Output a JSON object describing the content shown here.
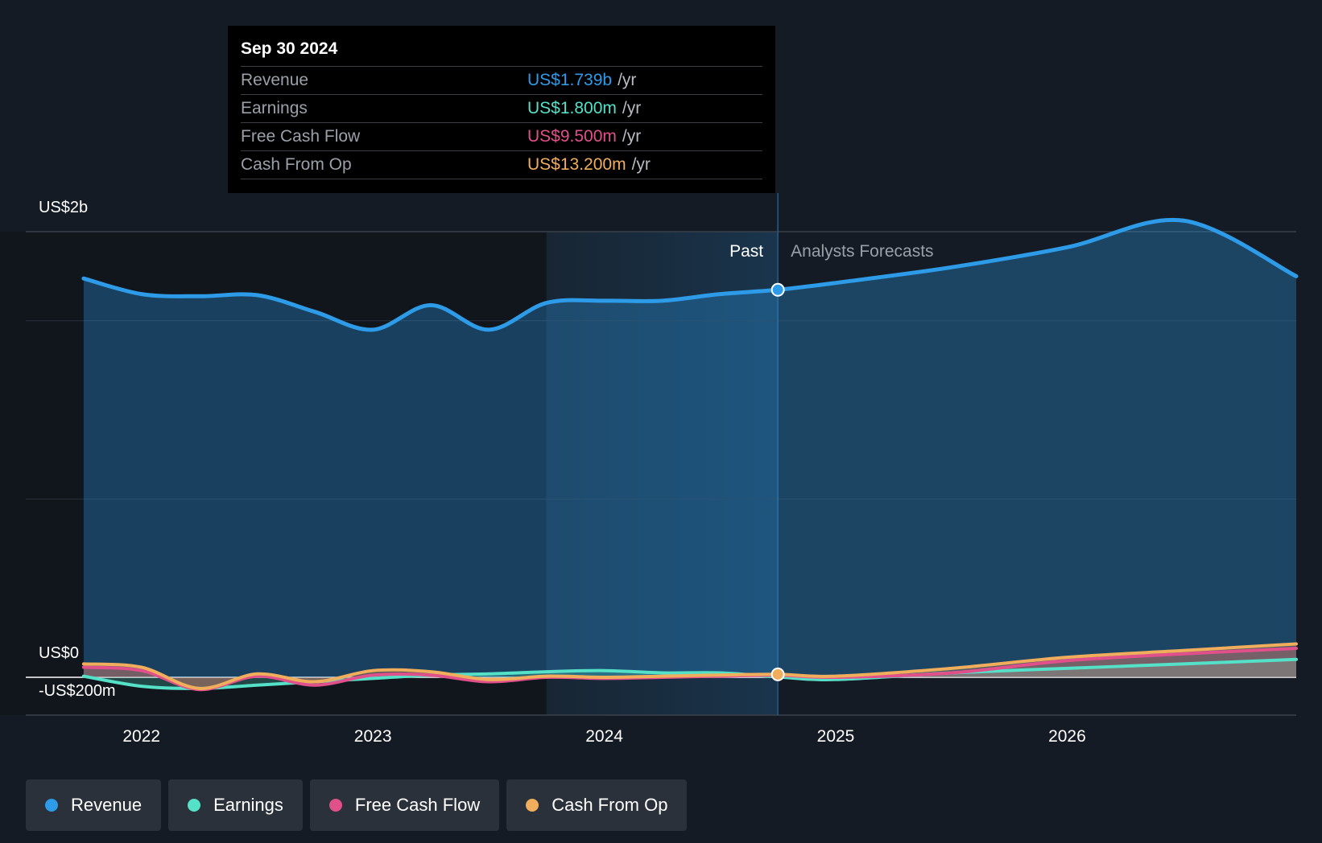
{
  "tooltip": {
    "date": "Sep 30 2024",
    "rows": [
      {
        "label": "Revenue",
        "value": "US$1.739b",
        "unit": "/yr",
        "color": "#2d9be8"
      },
      {
        "label": "Earnings",
        "value": "US$1.800m",
        "unit": "/yr",
        "color": "#55e0c8"
      },
      {
        "label": "Free Cash Flow",
        "value": "US$9.500m",
        "unit": "/yr",
        "color": "#e0508a"
      },
      {
        "label": "Cash From Op",
        "value": "US$13.200m",
        "unit": "/yr",
        "color": "#f0ad5c"
      }
    ]
  },
  "labels": {
    "past": "Past",
    "forecast": "Analysts Forecasts"
  },
  "legend": [
    {
      "label": "Revenue",
      "color": "#2d9be8"
    },
    {
      "label": "Earnings",
      "color": "#55e0c8"
    },
    {
      "label": "Free Cash Flow",
      "color": "#e0508a"
    },
    {
      "label": "Cash From Op",
      "color": "#f0ad5c"
    }
  ],
  "chart_data": {
    "type": "line",
    "y_tick_labels": [
      "US$2b",
      "US$0",
      "-US$200m"
    ],
    "y_ticks": [
      2000,
      0,
      -200
    ],
    "ylim": [
      -200,
      2000
    ],
    "x_tick_labels": [
      "2022",
      "2023",
      "2024",
      "2025",
      "2026"
    ],
    "x_ticks": [
      2022,
      2023,
      2024,
      2025,
      2026
    ],
    "xlim": [
      2021.5,
      2026.99
    ],
    "past_highlight_start": 2023.75,
    "past_end": 2024.75,
    "grid": true,
    "legend_position": "bottom-left",
    "series": [
      {
        "name": "Revenue",
        "color": "#2d9be8",
        "x": [
          2021.75,
          2022.0,
          2022.25,
          2022.5,
          2022.75,
          2023.0,
          2023.25,
          2023.5,
          2023.75,
          2024.0,
          2024.25,
          2024.5,
          2024.75,
          2025.0,
          2025.5,
          2026.0,
          2026.5,
          2026.99
        ],
        "y": [
          1790,
          1720,
          1710,
          1715,
          1640,
          1560,
          1670,
          1560,
          1680,
          1690,
          1690,
          1720,
          1739,
          1770,
          1840,
          1930,
          2050,
          1800
        ]
      },
      {
        "name": "Earnings",
        "color": "#55e0c8",
        "x": [
          2021.75,
          2022.0,
          2022.25,
          2022.5,
          2022.75,
          2023.0,
          2023.25,
          2023.5,
          2023.75,
          2024.0,
          2024.25,
          2024.5,
          2024.75,
          2025.0,
          2025.5,
          2026.0,
          2026.5,
          2026.99
        ],
        "y": [
          5,
          -40,
          -50,
          -35,
          -20,
          -5,
          10,
          15,
          25,
          30,
          20,
          20,
          1.8,
          -10,
          20,
          40,
          60,
          80
        ]
      },
      {
        "name": "Free Cash Flow",
        "color": "#e0508a",
        "x": [
          2021.75,
          2022.0,
          2022.25,
          2022.5,
          2022.75,
          2023.0,
          2023.25,
          2023.5,
          2023.75,
          2024.0,
          2024.25,
          2024.5,
          2024.75,
          2025.0,
          2025.5,
          2026.0,
          2026.5,
          2026.99
        ],
        "y": [
          45,
          30,
          -55,
          5,
          -35,
          10,
          10,
          -20,
          0,
          -5,
          0,
          5,
          9.5,
          0,
          20,
          75,
          105,
          130
        ]
      },
      {
        "name": "Cash From Op",
        "color": "#f0ad5c",
        "x": [
          2021.75,
          2022.0,
          2022.25,
          2022.5,
          2022.75,
          2023.0,
          2023.25,
          2023.5,
          2023.75,
          2024.0,
          2024.25,
          2024.5,
          2024.75,
          2025.0,
          2025.5,
          2026.0,
          2026.5,
          2026.99
        ],
        "y": [
          60,
          45,
          -50,
          15,
          -20,
          30,
          25,
          -10,
          5,
          0,
          5,
          10,
          13.2,
          5,
          40,
          90,
          120,
          150
        ]
      }
    ]
  }
}
